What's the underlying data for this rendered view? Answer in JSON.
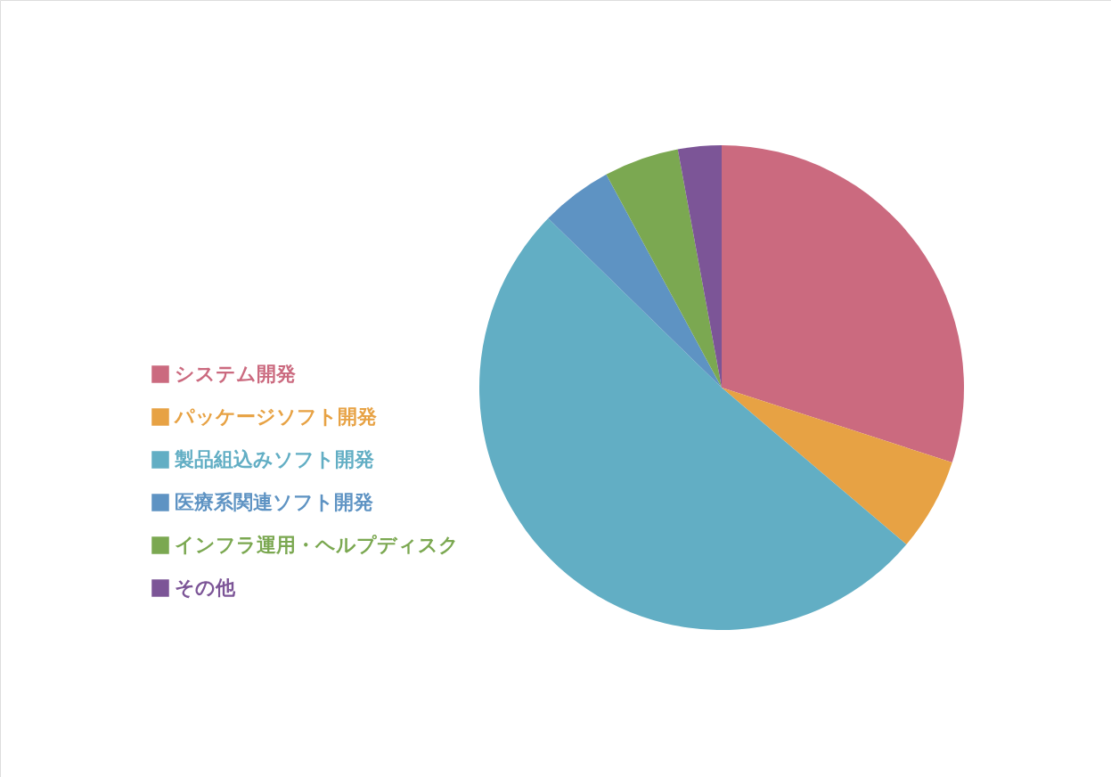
{
  "chart_data": {
    "type": "pie",
    "categories": [
      "システム開発",
      "パッケージソフト開発",
      "製品組込みソフト開発",
      "医療系関連ソフト開発",
      "インフラ運用・ヘルプディスク",
      "その他"
    ],
    "values": [
      30.0,
      6.2,
      51.1,
      4.8,
      5.0,
      2.9
    ],
    "colors": [
      "#cb6a7f",
      "#e7a244",
      "#62aec4",
      "#5e93c3",
      "#7ba851",
      "#7c5597"
    ],
    "legend": "left"
  }
}
